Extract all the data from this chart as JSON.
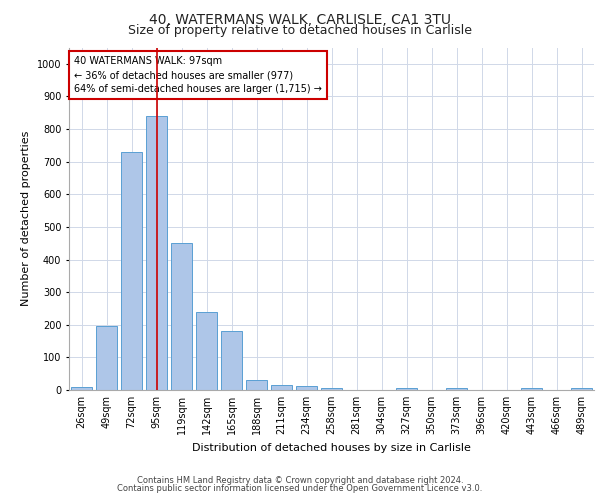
{
  "title1": "40, WATERMANS WALK, CARLISLE, CA1 3TU",
  "title2": "Size of property relative to detached houses in Carlisle",
  "xlabel": "Distribution of detached houses by size in Carlisle",
  "ylabel": "Number of detached properties",
  "categories": [
    "26sqm",
    "49sqm",
    "72sqm",
    "95sqm",
    "119sqm",
    "142sqm",
    "165sqm",
    "188sqm",
    "211sqm",
    "234sqm",
    "258sqm",
    "281sqm",
    "304sqm",
    "327sqm",
    "350sqm",
    "373sqm",
    "396sqm",
    "420sqm",
    "443sqm",
    "466sqm",
    "489sqm"
  ],
  "values": [
    10,
    195,
    730,
    840,
    450,
    240,
    180,
    30,
    15,
    12,
    5,
    0,
    0,
    5,
    0,
    5,
    0,
    0,
    5,
    0,
    5
  ],
  "bar_color": "#aec6e8",
  "bar_edge_color": "#5a9fd4",
  "red_line_x": 3,
  "ylim": [
    0,
    1050
  ],
  "yticks": [
    0,
    100,
    200,
    300,
    400,
    500,
    600,
    700,
    800,
    900,
    1000
  ],
  "annotation_text": "40 WATERMANS WALK: 97sqm\n← 36% of detached houses are smaller (977)\n64% of semi-detached houses are larger (1,715) →",
  "annotation_box_color": "#ffffff",
  "annotation_box_edge_color": "#cc0000",
  "footer1": "Contains HM Land Registry data © Crown copyright and database right 2024.",
  "footer2": "Contains public sector information licensed under the Open Government Licence v3.0.",
  "background_color": "#ffffff",
  "grid_color": "#d0d8e8",
  "title1_fontsize": 10,
  "title2_fontsize": 9,
  "ylabel_fontsize": 8,
  "xlabel_fontsize": 8,
  "tick_fontsize": 7,
  "ann_fontsize": 7,
  "footer_fontsize": 6
}
